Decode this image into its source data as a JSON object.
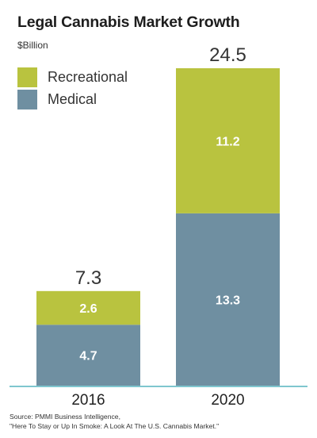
{
  "chart_data": {
    "type": "bar",
    "stacked": true,
    "title": "Legal Cannabis Market Growth",
    "unit_label": "$Billion",
    "categories": [
      "2016",
      "2020"
    ],
    "series": [
      {
        "name": "Medical",
        "values": [
          4.7,
          13.3
        ],
        "color": "#6f8fa1"
      },
      {
        "name": "Recreational",
        "values": [
          2.6,
          11.2
        ],
        "color": "#b9c33f"
      }
    ],
    "totals": [
      "7.3",
      "24.5"
    ],
    "segment_labels": [
      [
        "4.7",
        "13.3"
      ],
      [
        "2.6",
        "11.2"
      ]
    ],
    "ylim": [
      0,
      24.5
    ],
    "grid": false,
    "legend_position": "top-left",
    "axis_color": "#7fc6cf"
  },
  "source": {
    "line1": "Source: PMMI Business Intelligence,",
    "line2": "\"Here To Stay or Up In Smoke: A Look At The U.S. Cannabis Market.\""
  }
}
